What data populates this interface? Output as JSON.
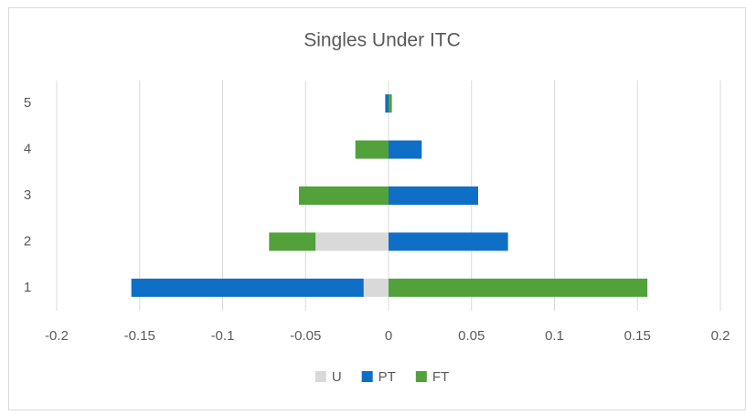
{
  "chart_data": {
    "type": "bar",
    "orientation": "horizontal",
    "stacked": true,
    "title": "Singles Under ITC",
    "categories": [
      "1",
      "2",
      "3",
      "4",
      "5"
    ],
    "series": [
      {
        "name": "U",
        "color": "#d9d9d9",
        "values": [
          -0.015,
          -0.044,
          0,
          0,
          0
        ]
      },
      {
        "name": "PT",
        "color": "#0f6fc6",
        "values": [
          -0.14,
          0.072,
          0.054,
          0.02,
          -0.002
        ]
      },
      {
        "name": "FT",
        "color": "#52a13a",
        "values": [
          0.156,
          -0.028,
          -0.054,
          -0.02,
          0.002
        ]
      }
    ],
    "xlim": [
      -0.2,
      0.2
    ],
    "xticks": [
      -0.2,
      -0.15,
      -0.1,
      -0.05,
      0,
      0.05,
      0.1,
      0.15,
      0.2
    ],
    "grid": true,
    "legend": "bottom"
  }
}
